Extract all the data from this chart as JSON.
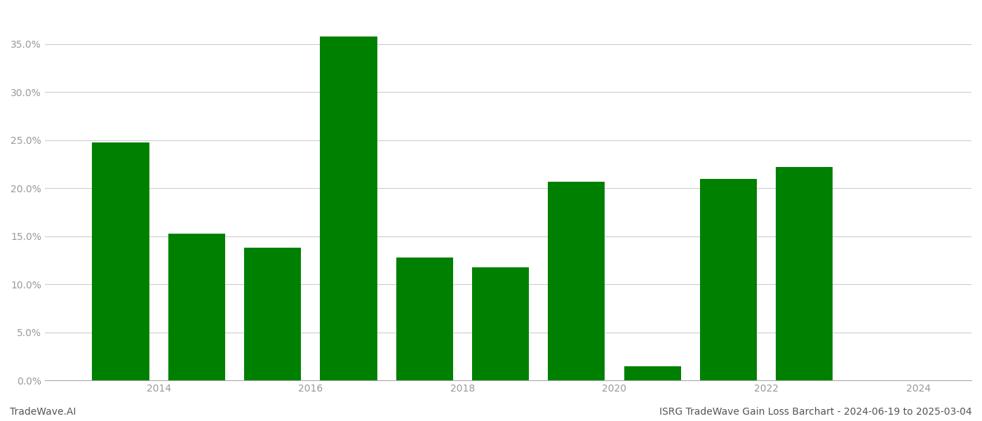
{
  "years": [
    2013.5,
    2014.5,
    2015.5,
    2016.5,
    2017.5,
    2018.5,
    2019.5,
    2020.5,
    2021.5,
    2022.5
  ],
  "values": [
    0.248,
    0.153,
    0.138,
    0.358,
    0.128,
    0.118,
    0.207,
    0.015,
    0.21,
    0.222
  ],
  "bar_color": "#008000",
  "background_color": "#ffffff",
  "grid_color": "#cccccc",
  "tick_color": "#999999",
  "ylim": [
    0,
    0.385
  ],
  "xlim": [
    2012.5,
    2024.7
  ],
  "xtick_positions": [
    2014,
    2016,
    2018,
    2020,
    2022,
    2024
  ],
  "xtick_labels": [
    "2014",
    "2016",
    "2018",
    "2020",
    "2022",
    "2024"
  ],
  "ytick_values": [
    0.0,
    0.05,
    0.1,
    0.15,
    0.2,
    0.25,
    0.3,
    0.35
  ],
  "footer_left": "TradeWave.AI",
  "footer_right": "ISRG TradeWave Gain Loss Barchart - 2024-06-19 to 2025-03-04",
  "bar_width": 0.75,
  "figsize": [
    14.0,
    6.0
  ],
  "dpi": 100
}
